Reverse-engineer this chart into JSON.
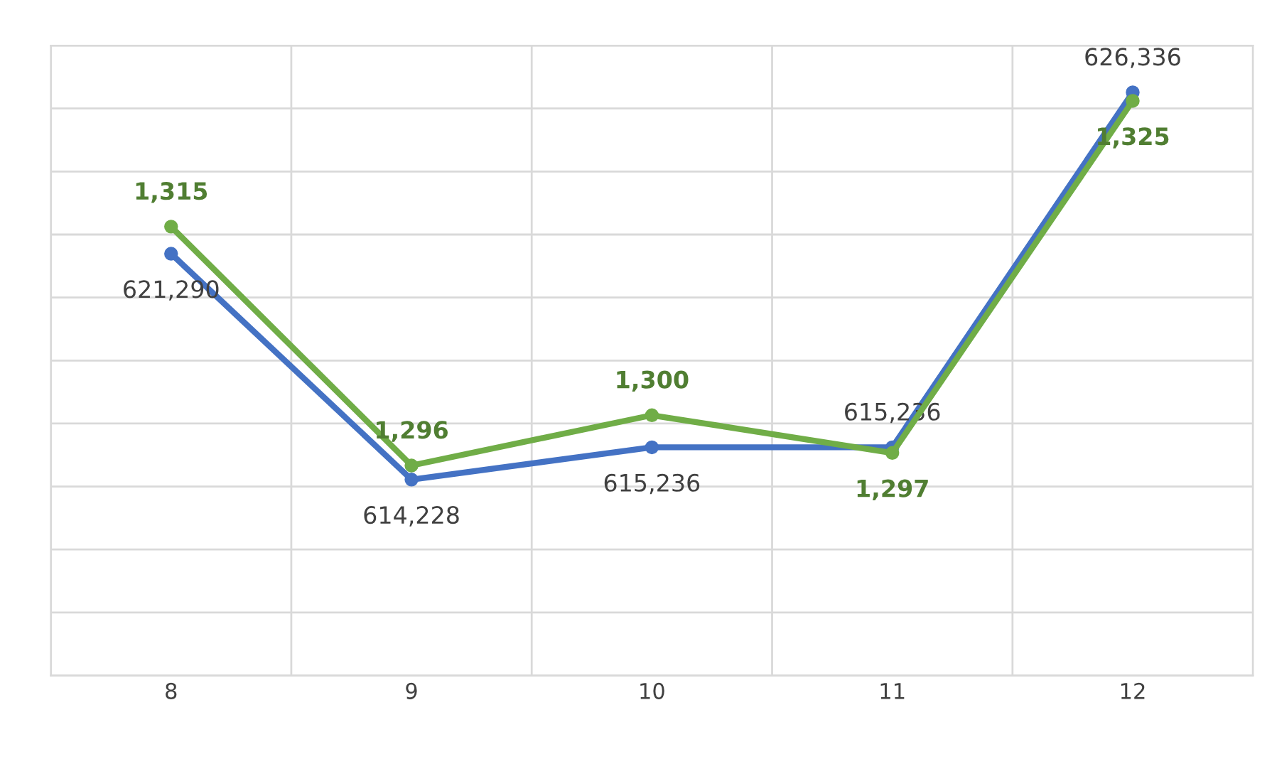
{
  "chart_data": {
    "type": "line",
    "categories": [
      "8",
      "9",
      "10",
      "11",
      "12"
    ],
    "ylim": [
      608100,
      627800
    ],
    "y2lim": [
      1279.3,
      1329.4
    ],
    "tick_labels": "x",
    "grid": true,
    "marker": "circle",
    "line_style": "solid",
    "series": [
      {
        "name": null,
        "color": "#4472c4",
        "values": [
          621290,
          614228,
          615236,
          615236,
          626336
        ],
        "value_labels": [
          "621,290",
          "614,228",
          "615,236",
          "615,236",
          "626,336"
        ]
      },
      {
        "name": null,
        "color": "#70ad47",
        "axis": "y2",
        "values": [
          1315,
          1296,
          1300,
          1297,
          1325
        ],
        "value_labels": [
          "1,315",
          "1,296",
          "1,300",
          "1,297",
          "1,325"
        ]
      }
    ]
  }
}
